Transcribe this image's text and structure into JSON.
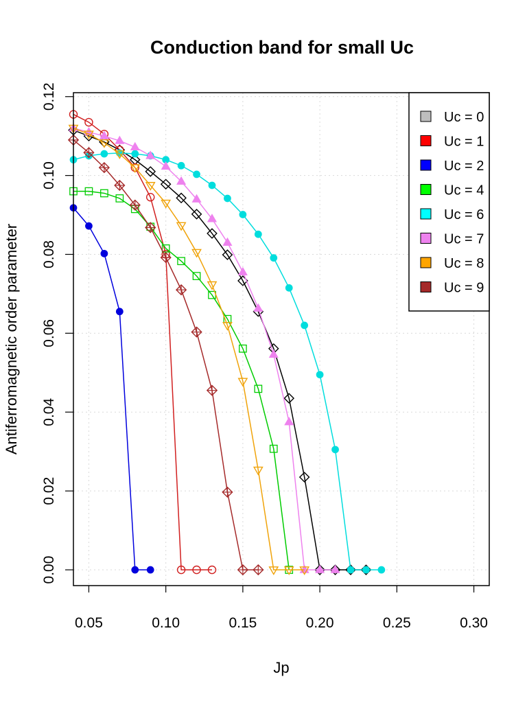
{
  "chart_data": {
    "type": "line",
    "title": "Conduction band for small Uc",
    "xlabel": "Jp",
    "ylabel": "Antiferromagnetic order parameter",
    "xlim": [
      0.04,
      0.31
    ],
    "ylim": [
      -0.004,
      0.121
    ],
    "xticks": [
      0.05,
      0.1,
      0.15,
      0.2,
      0.25,
      0.3
    ],
    "xtick_labels": [
      "0.05",
      "0.10",
      "0.15",
      "0.20",
      "0.25",
      "0.30"
    ],
    "yticks": [
      0.0,
      0.02,
      0.04,
      0.06,
      0.08,
      0.1,
      0.12
    ],
    "ytick_labels": [
      "0.00",
      "0.02",
      "0.04",
      "0.06",
      "0.08",
      "0.10",
      "0.12"
    ],
    "grid": true,
    "legend_position": "top-right",
    "series": [
      {
        "name": "Uc = 0",
        "color": "#000000",
        "legend_fill": "#bebebe",
        "marker": "diamond",
        "x": [
          0.04,
          0.05,
          0.06,
          0.07,
          0.08,
          0.09,
          0.1,
          0.11,
          0.12,
          0.13,
          0.14,
          0.15,
          0.16,
          0.17,
          0.18,
          0.19,
          0.2,
          0.21,
          0.22,
          0.23
        ],
        "y": [
          0.1115,
          0.11,
          0.1085,
          0.1065,
          0.104,
          0.101,
          0.0978,
          0.0943,
          0.0902,
          0.0853,
          0.0799,
          0.0733,
          0.0655,
          0.0561,
          0.0435,
          0.0235,
          0.0,
          0.0,
          0.0,
          0.0
        ]
      },
      {
        "name": "Uc = 1",
        "color": "#d11f1f",
        "legend_fill": "#ff0000",
        "marker": "circle-open",
        "x": [
          0.04,
          0.05,
          0.06,
          0.07,
          0.08,
          0.09,
          0.1,
          0.11,
          0.12,
          0.13
        ],
        "y": [
          0.1155,
          0.1135,
          0.1105,
          0.1065,
          0.102,
          0.0945,
          0.08,
          0.0,
          0.0,
          0.0
        ]
      },
      {
        "name": "Uc = 2",
        "color": "#0000dd",
        "legend_fill": "#0000ff",
        "marker": "circle-filled",
        "x": [
          0.04,
          0.05,
          0.06,
          0.07,
          0.08,
          0.09
        ],
        "y": [
          0.0918,
          0.0872,
          0.0802,
          0.0655,
          0.0,
          0.0
        ]
      },
      {
        "name": "Uc = 4",
        "color": "#00cc00",
        "legend_fill": "#00ff00",
        "marker": "square-open",
        "x": [
          0.04,
          0.05,
          0.06,
          0.07,
          0.08,
          0.09,
          0.1,
          0.11,
          0.12,
          0.13,
          0.14,
          0.15,
          0.16,
          0.17,
          0.18
        ],
        "y": [
          0.096,
          0.096,
          0.0955,
          0.0942,
          0.0915,
          0.087,
          0.0815,
          0.0783,
          0.0745,
          0.0697,
          0.0636,
          0.0561,
          0.0459,
          0.0307,
          0.0
        ]
      },
      {
        "name": "Uc = 6",
        "color": "#00dddd",
        "legend_fill": "#00ffff",
        "marker": "circle-filled",
        "x": [
          0.04,
          0.05,
          0.06,
          0.07,
          0.08,
          0.09,
          0.1,
          0.11,
          0.12,
          0.13,
          0.14,
          0.15,
          0.16,
          0.17,
          0.18,
          0.19,
          0.2,
          0.21,
          0.22,
          0.23,
          0.24
        ],
        "y": [
          0.104,
          0.105,
          0.1055,
          0.1057,
          0.1055,
          0.105,
          0.104,
          0.1025,
          0.1003,
          0.0975,
          0.0942,
          0.0901,
          0.0851,
          0.0791,
          0.0715,
          0.062,
          0.0495,
          0.0305,
          0.0,
          0.0,
          0.0
        ]
      },
      {
        "name": "Uc = 7",
        "color": "#ee82ee",
        "legend_fill": "#ee82ee",
        "marker": "triangle-filled",
        "x": [
          0.04,
          0.05,
          0.06,
          0.07,
          0.08,
          0.09,
          0.1,
          0.11,
          0.12,
          0.13,
          0.14,
          0.15,
          0.16,
          0.17,
          0.18,
          0.19,
          0.2,
          0.21
        ],
        "y": [
          0.112,
          0.111,
          0.11,
          0.1088,
          0.1072,
          0.105,
          0.1023,
          0.0985,
          0.094,
          0.089,
          0.083,
          0.0755,
          0.0663,
          0.0546,
          0.0375,
          0.0,
          0.0,
          0.0
        ]
      },
      {
        "name": "Uc = 8",
        "color": "#f0a30a",
        "legend_fill": "#ffa500",
        "marker": "triangle-down-open",
        "x": [
          0.04,
          0.05,
          0.06,
          0.07,
          0.08,
          0.09,
          0.1,
          0.11,
          0.12,
          0.13,
          0.14,
          0.15,
          0.16,
          0.17,
          0.18,
          0.19
        ],
        "y": [
          0.112,
          0.1105,
          0.1083,
          0.1055,
          0.102,
          0.0975,
          0.093,
          0.0873,
          0.0805,
          0.0723,
          0.062,
          0.0478,
          0.0253,
          0.0,
          0.0,
          0.0
        ]
      },
      {
        "name": "Uc = 9",
        "color": "#a52a2a",
        "legend_fill": "#a52a2a",
        "marker": "diamond-plus",
        "x": [
          0.04,
          0.05,
          0.06,
          0.07,
          0.08,
          0.09,
          0.1,
          0.11,
          0.12,
          0.13,
          0.14,
          0.15,
          0.16
        ],
        "y": [
          0.109,
          0.1058,
          0.102,
          0.0975,
          0.0925,
          0.0868,
          0.0792,
          0.071,
          0.0603,
          0.0455,
          0.0197,
          0.0,
          0.0
        ]
      }
    ]
  }
}
